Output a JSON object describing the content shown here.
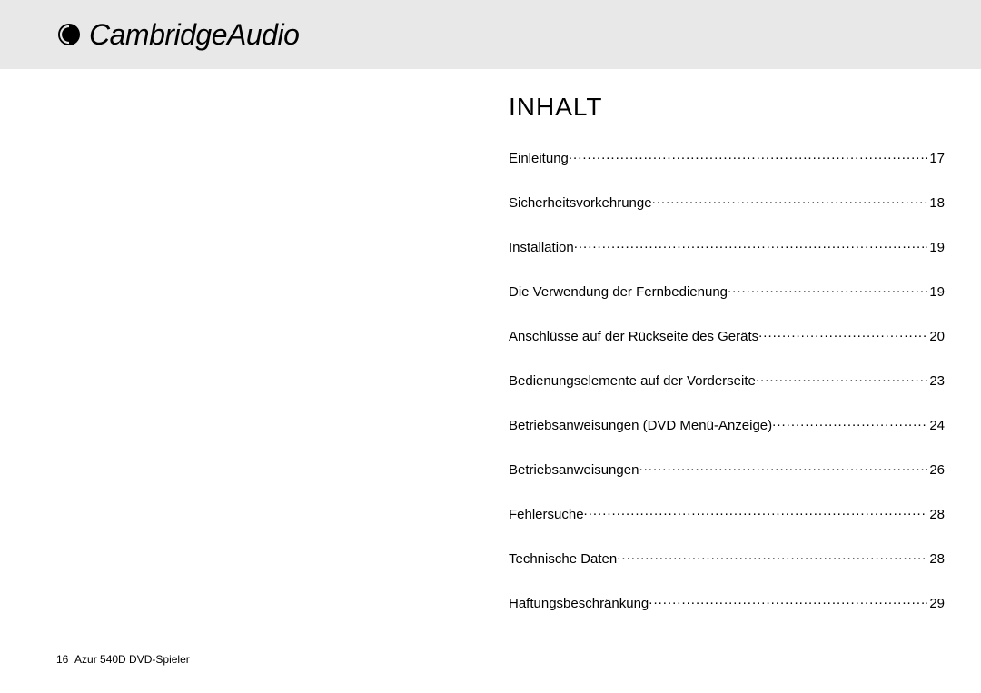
{
  "brand": {
    "name_part1": "Cambridge",
    "name_part2": "Audio"
  },
  "title": "INHALT",
  "toc": [
    {
      "label": "Einleitung",
      "page": "17"
    },
    {
      "label": "Sicherheitsvorkehrunge",
      "page": "18"
    },
    {
      "label": "Installation",
      "page": "19"
    },
    {
      "label": "Die Verwendung der Fernbedienung",
      "page": "19"
    },
    {
      "label": "Anschlüsse auf der Rückseite des Geräts",
      "page": "20"
    },
    {
      "label": "Bedienungselemente auf der Vorderseite",
      "page": "23"
    },
    {
      "label": "Betriebsanweisungen (DVD Menü-Anzeige)",
      "page": "24"
    },
    {
      "label": "Betriebsanweisungen",
      "page": "26"
    },
    {
      "label": "Fehlersuche",
      "page": "28"
    },
    {
      "label": "Technische Daten",
      "page": "28"
    },
    {
      "label": "Haftungsbeschränkung",
      "page": "29"
    }
  ],
  "footer": {
    "page_number": "16",
    "doc_title": "Azur 540D DVD-Spieler"
  },
  "colors": {
    "header_bg": "#e8e8e8",
    "page_bg": "#ffffff",
    "text": "#000000"
  }
}
